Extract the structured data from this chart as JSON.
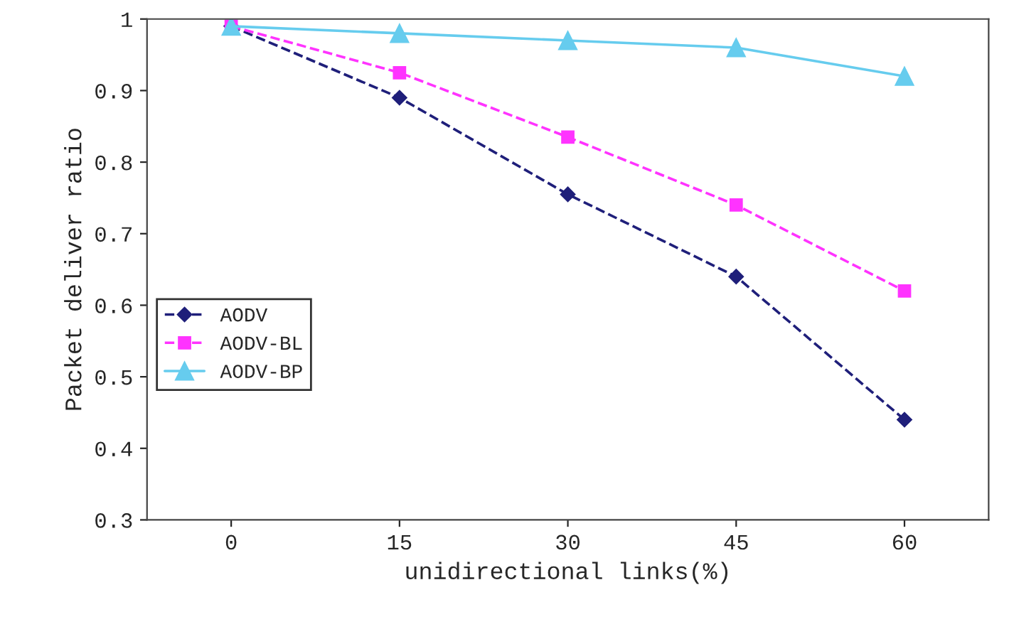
{
  "chart_data": {
    "type": "line",
    "xlabel": "unidirectional links(%)",
    "ylabel": "Packet deliver ratio",
    "categories": [
      "0",
      "15",
      "30",
      "45",
      "60"
    ],
    "series": [
      {
        "name": "AODV",
        "color": "#1f1f7a",
        "values": [
          0.99,
          0.89,
          0.755,
          0.64,
          0.44
        ],
        "marker": "diamond",
        "line_style": "dashed"
      },
      {
        "name": "AODV-BL",
        "color": "#ff33ff",
        "values": [
          0.99,
          0.925,
          0.835,
          0.74,
          0.62
        ],
        "marker": "square",
        "line_style": "dashed"
      },
      {
        "name": "AODV-BP",
        "color": "#66ccee",
        "values": [
          0.99,
          0.98,
          0.97,
          0.96,
          0.92
        ],
        "marker": "triangle",
        "line_style": "solid"
      }
    ],
    "ylim": [
      0.3,
      1
    ],
    "yticks": [
      0.3,
      0.4,
      0.5,
      0.6,
      0.7,
      0.8,
      0.9,
      1
    ],
    "grid": false,
    "legend": "center left"
  }
}
